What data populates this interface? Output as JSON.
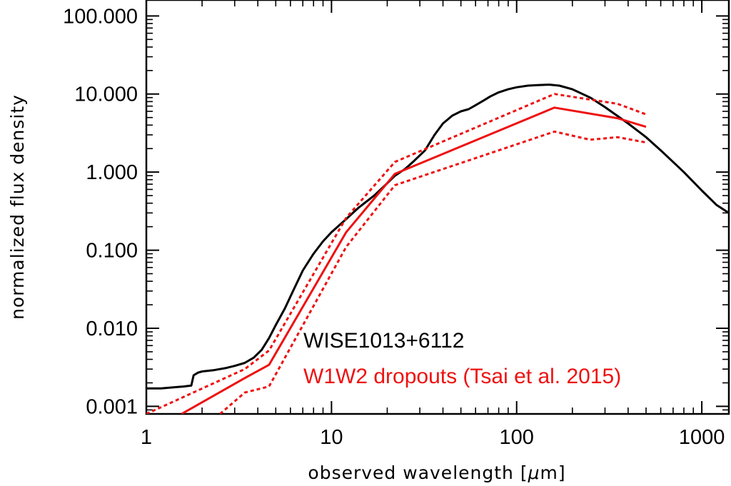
{
  "chart_data": {
    "type": "line",
    "xscale": "log",
    "yscale": "log",
    "xlim": [
      1,
      1400
    ],
    "ylim": [
      0.0008,
      160
    ],
    "xlabel_parts": [
      "observed wavelength [",
      "μ",
      "m]"
    ],
    "ylabel": "normalized flux density",
    "x_ticks": [
      {
        "value": 1,
        "label": "1"
      },
      {
        "value": 10,
        "label": "10"
      },
      {
        "value": 100,
        "label": "100"
      },
      {
        "value": 1000,
        "label": "1000"
      }
    ],
    "y_ticks": [
      {
        "value": 0.001,
        "label": "0.001"
      },
      {
        "value": 0.01,
        "label": "0.010"
      },
      {
        "value": 0.1,
        "label": "0.100"
      },
      {
        "value": 1,
        "label": "1.000"
      },
      {
        "value": 10,
        "label": "10.000"
      },
      {
        "value": 100,
        "label": "100.000"
      }
    ],
    "legend": [
      {
        "text": "WISE1013+6112",
        "color": "#000000"
      },
      {
        "text": "W1W2 dropouts (Tsai et al. 2015)",
        "color": "#ee1111"
      }
    ],
    "series": [
      {
        "name": "WISE1013+6112",
        "color": "#000000",
        "style": "solid",
        "x": [
          1.0,
          1.2,
          1.4,
          1.6,
          1.75,
          1.8,
          1.9,
          2.0,
          2.3,
          2.7,
          3.0,
          3.4,
          3.8,
          4.2,
          4.6,
          5.0,
          5.6,
          6.2,
          7.0,
          8.0,
          9.0,
          10.0,
          12.0,
          14.0,
          17.0,
          20.0,
          22.0,
          25.0,
          28.0,
          32.0,
          36.0,
          40.0,
          45.0,
          50.0,
          55.0,
          60.0,
          66.0,
          72.0,
          80.0,
          90.0,
          100.0,
          115.0,
          130.0,
          150.0,
          170.0,
          200.0,
          250.0,
          300.0,
          400.0,
          500.0,
          600.0,
          800.0,
          1000.0,
          1200.0,
          1400.0
        ],
        "y": [
          0.0017,
          0.0017,
          0.00175,
          0.0018,
          0.00185,
          0.0025,
          0.0027,
          0.0028,
          0.0029,
          0.0031,
          0.0033,
          0.0036,
          0.0042,
          0.0053,
          0.0075,
          0.011,
          0.018,
          0.03,
          0.055,
          0.09,
          0.13,
          0.17,
          0.25,
          0.35,
          0.5,
          0.72,
          0.9,
          1.1,
          1.4,
          1.9,
          3.0,
          4.2,
          5.3,
          6.0,
          6.4,
          7.2,
          8.2,
          9.3,
          10.5,
          11.5,
          12.2,
          12.8,
          13.0,
          13.2,
          12.8,
          11.5,
          9.0,
          6.8,
          4.2,
          2.8,
          1.9,
          1.0,
          0.58,
          0.38,
          0.3
        ]
      },
      {
        "name": "W1W2 dropouts median",
        "color": "#ee1111",
        "style": "solid",
        "x": [
          1.55,
          3.4,
          4.6,
          12.0,
          22.0,
          160.0,
          350.0,
          500.0
        ],
        "y": [
          0.0008,
          0.0023,
          0.0034,
          0.17,
          0.95,
          6.7,
          4.9,
          3.8
        ]
      },
      {
        "name": "W1W2 dropouts upper",
        "color": "#ee1111",
        "style": "dashed",
        "x": [
          1.0,
          3.4,
          4.6,
          12.0,
          22.0,
          160.0,
          350.0,
          500.0
        ],
        "y": [
          0.0008,
          0.003,
          0.0052,
          0.26,
          1.35,
          10.0,
          7.5,
          5.5
        ]
      },
      {
        "name": "W1W2 dropouts lower",
        "color": "#ee1111",
        "style": "dashed",
        "x": [
          2.5,
          3.4,
          4.6,
          12.0,
          22.0,
          160.0,
          250.0,
          350.0,
          500.0
        ],
        "y": [
          0.0008,
          0.0015,
          0.0018,
          0.11,
          0.68,
          3.3,
          2.6,
          2.8,
          2.4
        ]
      }
    ]
  }
}
